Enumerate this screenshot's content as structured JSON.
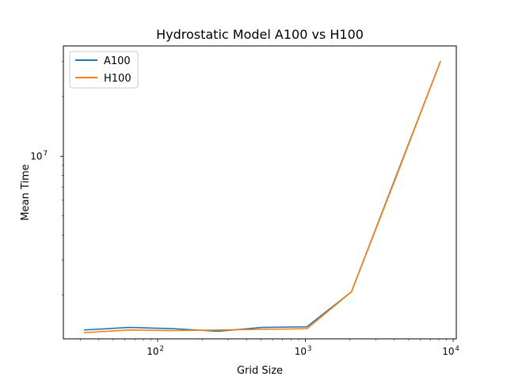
{
  "chart_data": {
    "type": "line",
    "title": "Hydrostatic Model A100 vs H100",
    "xlabel": "Grid Size",
    "ylabel": "Mean Time",
    "xscale": "log",
    "yscale": "log",
    "xlim": [
      23,
      10500
    ],
    "ylim": [
      1200000,
      36000000
    ],
    "x": [
      32,
      64,
      128,
      256,
      512,
      1024,
      2048,
      4096,
      8192
    ],
    "series": [
      {
        "name": "A100",
        "color": "#1f77b4",
        "values": [
          1330000,
          1370000,
          1350000,
          1310000,
          1370000,
          1380000,
          2070000,
          7900000,
          30000000
        ]
      },
      {
        "name": "H100",
        "color": "#ff7f0e",
        "values": [
          1290000,
          1330000,
          1320000,
          1330000,
          1340000,
          1350000,
          2070000,
          7800000,
          30000000
        ]
      }
    ],
    "xticks": [
      {
        "value": 100,
        "base": "10",
        "exp": "2"
      },
      {
        "value": 1000,
        "base": "10",
        "exp": "3"
      },
      {
        "value": 10000,
        "base": "10",
        "exp": "4"
      }
    ],
    "yticks": [
      {
        "value": 10000000,
        "base": "10",
        "exp": "7"
      }
    ],
    "grid": false,
    "legend_position": "top-left"
  }
}
